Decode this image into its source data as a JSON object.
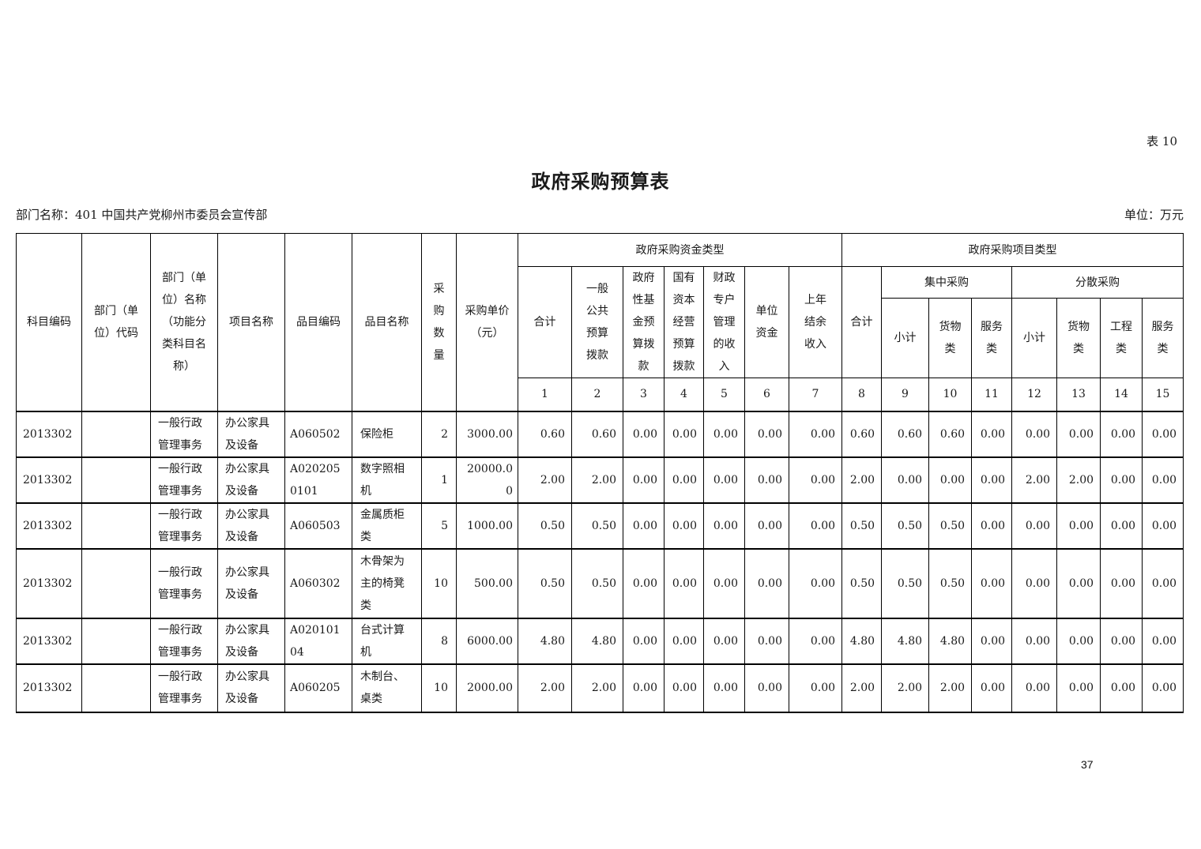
{
  "page": {
    "table_tag": "表 10",
    "title": "政府采购预算表",
    "department": "部门名称：401 中国共产党柳州市委员会宣传部",
    "unit": "单位：万元",
    "page_number": "37"
  },
  "table": {
    "header": {
      "subject_code": "科目编码",
      "dept_code": "部门（单位）代码",
      "dept_name": "部门（单位）名称（功能分类科目名称）",
      "project_name": "项目名称",
      "item_code": "品目编码",
      "item_name": "品目名称",
      "purchase_qty": "采购数量",
      "unit_price": "采购单价（元）",
      "fund_type_group": "政府采购资金类型",
      "fund_total": "合计",
      "fund_general_budget": "一般公共预算拨款",
      "fund_gov_fund": "政府性基金预算拨款",
      "fund_state_capital": "国有资本经营预算拨款",
      "fund_fiscal_account": "财政专户管理的收入",
      "fund_unit_funds": "单位资金",
      "fund_prev_balance": "上年结余收入",
      "project_type_group": "政府采购项目类型",
      "type_total": "合计",
      "centralized_group": "集中采购",
      "centralized_subtotal": "小计",
      "centralized_goods": "货物类",
      "centralized_services": "服务类",
      "decentralized_group": "分散采购",
      "decentralized_subtotal": "小计",
      "decentralized_goods": "货物类",
      "decentralized_works": "工程类",
      "decentralized_services": "服务类",
      "col_numbers": [
        "1",
        "2",
        "3",
        "4",
        "5",
        "6",
        "7",
        "8",
        "9",
        "10",
        "11",
        "12",
        "13",
        "14",
        "15"
      ]
    },
    "rows": [
      [
        "2013302",
        "",
        "一般行政管理事务",
        "办公家具及设备",
        "A060502",
        "保险柜",
        "2",
        "3000.00",
        "0.60",
        "0.60",
        "0.00",
        "0.00",
        "0.00",
        "0.00",
        "0.00",
        "0.60",
        "0.60",
        "0.60",
        "0.00",
        "0.00",
        "0.00",
        "0.00",
        "0.00"
      ],
      [
        "2013302",
        "",
        "一般行政管理事务",
        "办公家具及设备",
        "A0202050101",
        "数字照相机",
        "1",
        "20000.00",
        "2.00",
        "2.00",
        "0.00",
        "0.00",
        "0.00",
        "0.00",
        "0.00",
        "2.00",
        "0.00",
        "0.00",
        "0.00",
        "2.00",
        "2.00",
        "0.00",
        "0.00"
      ],
      [
        "2013302",
        "",
        "一般行政管理事务",
        "办公家具及设备",
        "A060503",
        "金属质柜类",
        "5",
        "1000.00",
        "0.50",
        "0.50",
        "0.00",
        "0.00",
        "0.00",
        "0.00",
        "0.00",
        "0.50",
        "0.50",
        "0.50",
        "0.00",
        "0.00",
        "0.00",
        "0.00",
        "0.00"
      ],
      [
        "2013302",
        "",
        "一般行政管理事务",
        "办公家具及设备",
        "A060302",
        "木骨架为主的椅凳类",
        "10",
        "500.00",
        "0.50",
        "0.50",
        "0.00",
        "0.00",
        "0.00",
        "0.00",
        "0.00",
        "0.50",
        "0.50",
        "0.50",
        "0.00",
        "0.00",
        "0.00",
        "0.00",
        "0.00"
      ],
      [
        "2013302",
        "",
        "一般行政管理事务",
        "办公家具及设备",
        "A02010104",
        "台式计算机",
        "8",
        "6000.00",
        "4.80",
        "4.80",
        "0.00",
        "0.00",
        "0.00",
        "0.00",
        "0.00",
        "4.80",
        "4.80",
        "4.80",
        "0.00",
        "0.00",
        "0.00",
        "0.00",
        "0.00"
      ],
      [
        "2013302",
        "",
        "一般行政管理事务",
        "办公家具及设备",
        "A060205",
        "木制台、桌类",
        "10",
        "2000.00",
        "2.00",
        "2.00",
        "0.00",
        "0.00",
        "0.00",
        "0.00",
        "0.00",
        "2.00",
        "2.00",
        "2.00",
        "0.00",
        "0.00",
        "0.00",
        "0.00",
        "0.00"
      ]
    ]
  }
}
